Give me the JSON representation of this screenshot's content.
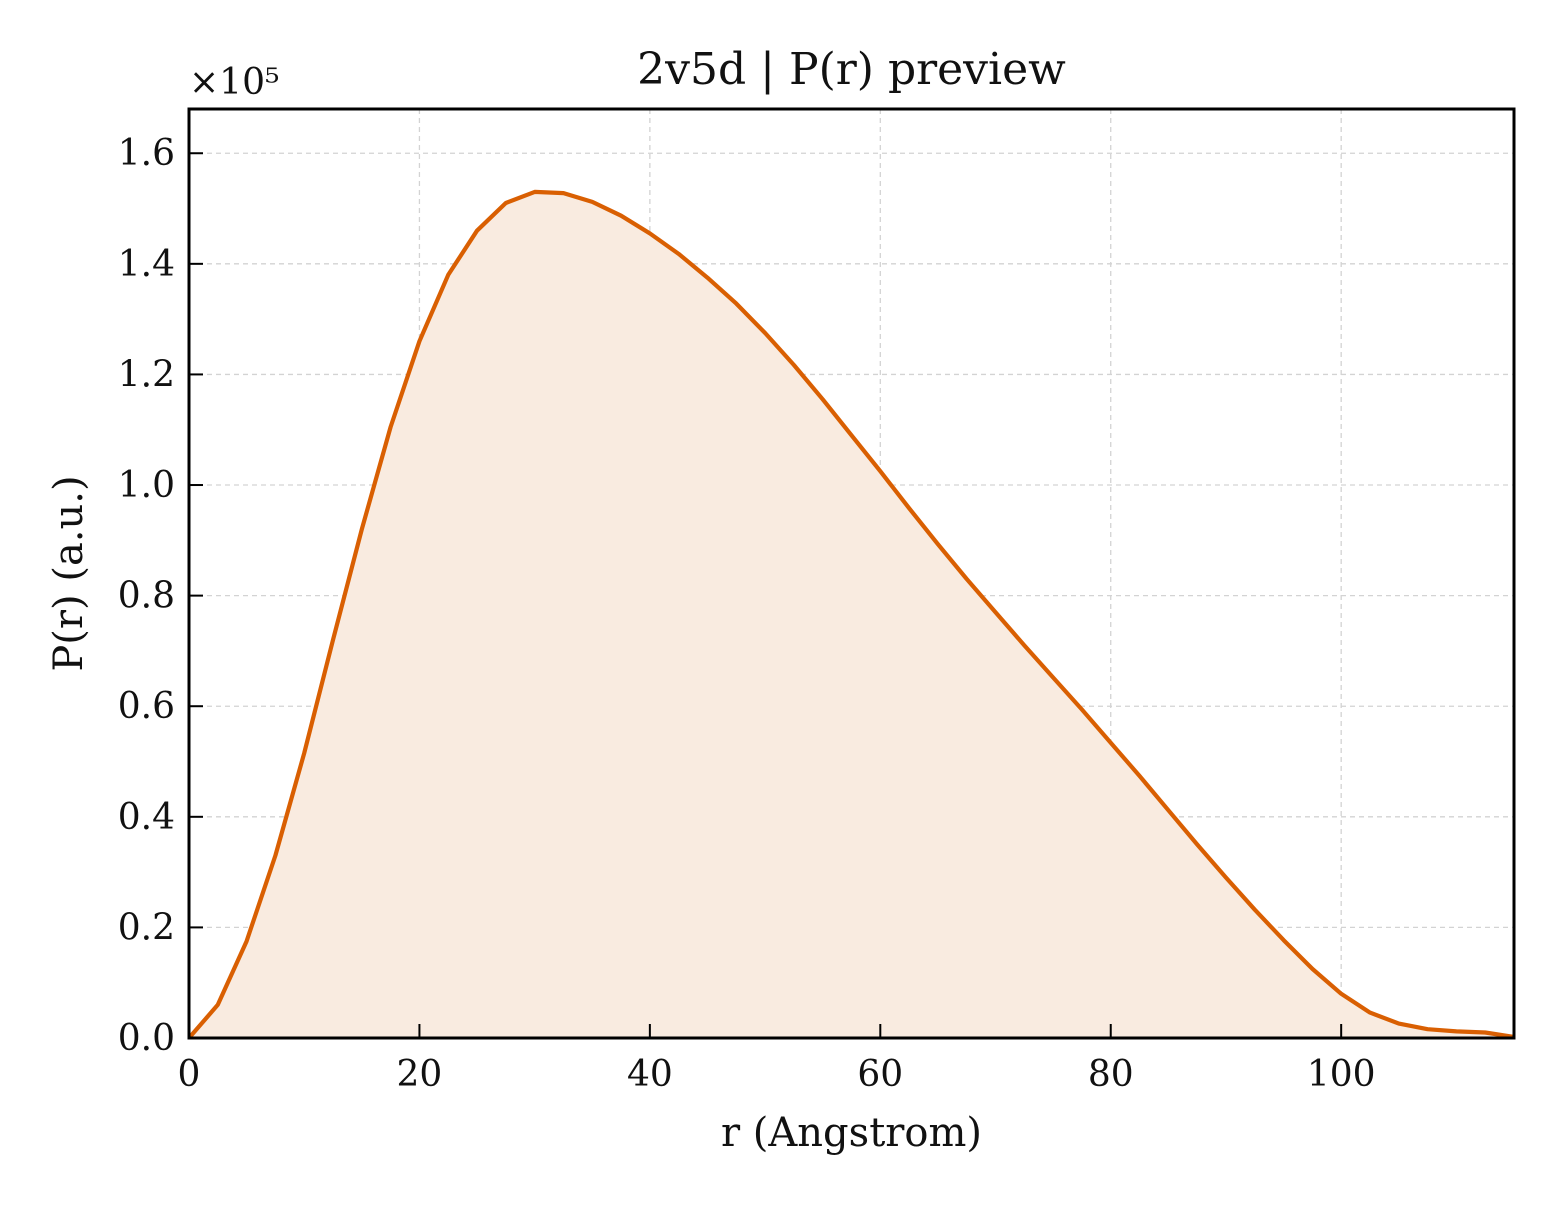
{
  "chart_data": {
    "type": "area",
    "title": "2v5d | P(r) preview",
    "xlabel": "r (Angstrom)",
    "ylabel": "P(r) (a.u.)",
    "y_multiplier_label": "×10⁵",
    "y_scale_factor": 100000,
    "xlim": [
      0,
      115
    ],
    "ylim": [
      0,
      1.68
    ],
    "x_ticks": [
      0,
      20,
      40,
      60,
      80,
      100
    ],
    "x_tick_labels": [
      "0",
      "20",
      "40",
      "60",
      "80",
      "100"
    ],
    "y_ticks": [
      0,
      0.2,
      0.4,
      0.6,
      0.8,
      1.0,
      1.2,
      1.4,
      1.6
    ],
    "y_tick_labels": [
      "0.0",
      "0.2",
      "0.4",
      "0.6",
      "0.8",
      "1.0",
      "1.2",
      "1.4",
      "1.6"
    ],
    "grid": true,
    "colors": {
      "line": "#d95f02",
      "fill": "#f9ebe0",
      "grid": "#d3d3d3",
      "axes": "#000000"
    },
    "series": [
      {
        "x": [
          0,
          2.5,
          5,
          7.5,
          10,
          12.5,
          15,
          17.5,
          20,
          22.5,
          25,
          27.5,
          30,
          32.5,
          35,
          37.5,
          40,
          42.5,
          45,
          47.5,
          50,
          52.5,
          55,
          57.5,
          60,
          62.5,
          65,
          67.5,
          70,
          72.5,
          75,
          77.5,
          80,
          82.5,
          85,
          87.5,
          90,
          92.5,
          95,
          97.5,
          100,
          102.5,
          105,
          107.5,
          110,
          112.5,
          115
        ],
        "values": [
          0.0,
          0.06,
          0.175,
          0.33,
          0.515,
          0.72,
          0.92,
          1.105,
          1.26,
          1.38,
          1.46,
          1.51,
          1.53,
          1.528,
          1.512,
          1.487,
          1.455,
          1.418,
          1.375,
          1.328,
          1.275,
          1.217,
          1.155,
          1.09,
          1.025,
          0.958,
          0.893,
          0.83,
          0.77,
          0.71,
          0.652,
          0.594,
          0.534,
          0.474,
          0.412,
          0.35,
          0.29,
          0.232,
          0.177,
          0.125,
          0.08,
          0.046,
          0.026,
          0.016,
          0.012,
          0.01,
          0.002
        ]
      }
    ]
  }
}
